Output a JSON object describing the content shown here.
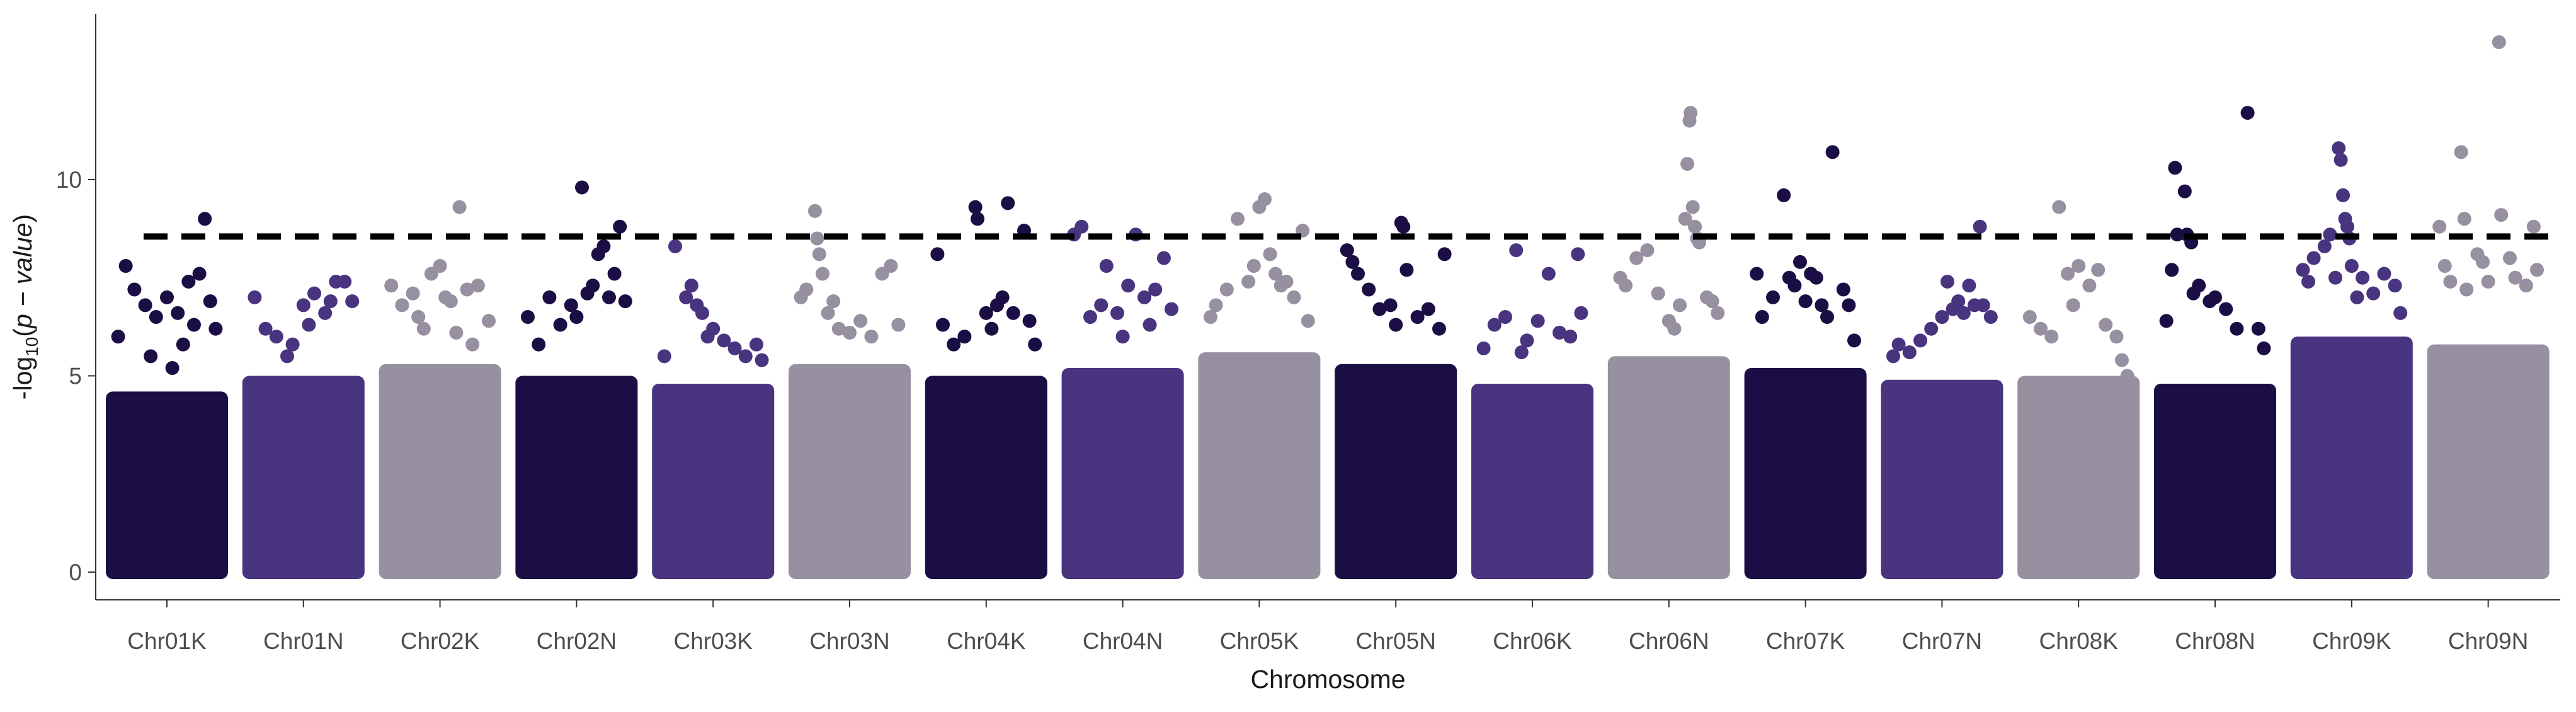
{
  "chart_data": {
    "type": "scatter",
    "subtype": "manhattan",
    "title": "",
    "xlabel": "Chromosome",
    "ylabel": {
      "prefix": "-log",
      "subscript": "10",
      "open": "(",
      "expression": "p − value",
      "close": ")"
    },
    "ylim": [
      0,
      14
    ],
    "y_ticks": [
      0,
      5,
      10
    ],
    "grid": false,
    "legend": "none",
    "threshold": {
      "value": 8.55,
      "style": "dashed",
      "color": "#000000"
    },
    "palette": [
      "#1b0e44",
      "#49347f",
      "#9690a0"
    ],
    "categories": [
      "Chr01K",
      "Chr01N",
      "Chr02K",
      "Chr02N",
      "Chr03K",
      "Chr03N",
      "Chr04K",
      "Chr04N",
      "Chr05K",
      "Chr05N",
      "Chr06K",
      "Chr06N",
      "Chr07K",
      "Chr07N",
      "Chr08K",
      "Chr08N",
      "Chr09K",
      "Chr09N"
    ],
    "series": [
      {
        "chromosome": "Chr01K",
        "color": "#1b0e44",
        "dense_top": 4.6,
        "points": [
          [
            0.05,
            6.0
          ],
          [
            0.12,
            7.8
          ],
          [
            0.2,
            7.2
          ],
          [
            0.3,
            6.8
          ],
          [
            0.4,
            6.5
          ],
          [
            0.5,
            7.0
          ],
          [
            0.6,
            6.6
          ],
          [
            0.7,
            7.4
          ],
          [
            0.8,
            7.6
          ],
          [
            0.85,
            9.0
          ],
          [
            0.9,
            6.9
          ],
          [
            0.95,
            6.2
          ],
          [
            0.35,
            5.5
          ],
          [
            0.55,
            5.2
          ],
          [
            0.75,
            6.3
          ],
          [
            0.65,
            5.8
          ]
        ]
      },
      {
        "chromosome": "Chr01N",
        "color": "#49347f",
        "dense_top": 5.0,
        "points": [
          [
            0.05,
            7.0
          ],
          [
            0.15,
            6.2
          ],
          [
            0.25,
            6.0
          ],
          [
            0.35,
            5.5
          ],
          [
            0.5,
            6.8
          ],
          [
            0.6,
            7.1
          ],
          [
            0.7,
            6.6
          ],
          [
            0.8,
            7.4
          ],
          [
            0.88,
            7.4
          ],
          [
            0.95,
            6.9
          ],
          [
            0.4,
            5.8
          ],
          [
            0.55,
            6.3
          ],
          [
            0.75,
            6.9
          ]
        ]
      },
      {
        "chromosome": "Chr02K",
        "color": "#9690a0",
        "dense_top": 5.3,
        "points": [
          [
            0.05,
            7.3
          ],
          [
            0.15,
            6.8
          ],
          [
            0.25,
            7.1
          ],
          [
            0.3,
            6.5
          ],
          [
            0.42,
            7.6
          ],
          [
            0.5,
            7.8
          ],
          [
            0.55,
            7.0
          ],
          [
            0.6,
            6.9
          ],
          [
            0.68,
            9.3
          ],
          [
            0.75,
            7.2
          ],
          [
            0.85,
            7.3
          ],
          [
            0.95,
            6.4
          ],
          [
            0.35,
            6.2
          ],
          [
            0.65,
            6.1
          ],
          [
            0.8,
            5.8
          ]
        ]
      },
      {
        "chromosome": "Chr02N",
        "color": "#1b0e44",
        "dense_top": 5.0,
        "points": [
          [
            0.05,
            6.5
          ],
          [
            0.15,
            5.8
          ],
          [
            0.25,
            7.0
          ],
          [
            0.35,
            6.3
          ],
          [
            0.45,
            6.8
          ],
          [
            0.55,
            9.8
          ],
          [
            0.6,
            7.1
          ],
          [
            0.7,
            8.1
          ],
          [
            0.75,
            8.3
          ],
          [
            0.85,
            7.6
          ],
          [
            0.9,
            8.8
          ],
          [
            0.95,
            6.9
          ],
          [
            0.5,
            6.5
          ],
          [
            0.65,
            7.3
          ],
          [
            0.8,
            7.0
          ]
        ]
      },
      {
        "chromosome": "Chr03K",
        "color": "#49347f",
        "dense_top": 4.8,
        "points": [
          [
            0.05,
            5.5
          ],
          [
            0.15,
            8.3
          ],
          [
            0.25,
            7.0
          ],
          [
            0.3,
            7.3
          ],
          [
            0.4,
            6.6
          ],
          [
            0.5,
            6.2
          ],
          [
            0.6,
            5.9
          ],
          [
            0.7,
            5.7
          ],
          [
            0.8,
            5.5
          ],
          [
            0.9,
            5.8
          ],
          [
            0.95,
            5.4
          ],
          [
            0.35,
            6.8
          ],
          [
            0.45,
            6.0
          ]
        ]
      },
      {
        "chromosome": "Chr03N",
        "color": "#9690a0",
        "dense_top": 5.3,
        "points": [
          [
            0.05,
            7.0
          ],
          [
            0.1,
            7.2
          ],
          [
            0.18,
            9.2
          ],
          [
            0.2,
            8.5
          ],
          [
            0.22,
            8.1
          ],
          [
            0.25,
            7.6
          ],
          [
            0.3,
            6.6
          ],
          [
            0.4,
            6.2
          ],
          [
            0.5,
            6.1
          ],
          [
            0.6,
            6.4
          ],
          [
            0.7,
            6.0
          ],
          [
            0.8,
            7.6
          ],
          [
            0.88,
            7.8
          ],
          [
            0.95,
            6.3
          ],
          [
            0.35,
            6.9
          ]
        ]
      },
      {
        "chromosome": "Chr04K",
        "color": "#1b0e44",
        "dense_top": 5.0,
        "points": [
          [
            0.05,
            8.1
          ],
          [
            0.1,
            6.3
          ],
          [
            0.2,
            5.8
          ],
          [
            0.3,
            6.0
          ],
          [
            0.4,
            9.3
          ],
          [
            0.42,
            9.0
          ],
          [
            0.55,
            6.2
          ],
          [
            0.6,
            6.8
          ],
          [
            0.7,
            9.4
          ],
          [
            0.75,
            6.6
          ],
          [
            0.85,
            8.7
          ],
          [
            0.9,
            6.4
          ],
          [
            0.95,
            5.8
          ],
          [
            0.5,
            6.6
          ],
          [
            0.65,
            7.0
          ]
        ]
      },
      {
        "chromosome": "Chr04N",
        "color": "#49347f",
        "dense_top": 5.2,
        "points": [
          [
            0.05,
            8.6
          ],
          [
            0.12,
            8.8
          ],
          [
            0.2,
            6.5
          ],
          [
            0.3,
            6.8
          ],
          [
            0.35,
            7.8
          ],
          [
            0.45,
            6.6
          ],
          [
            0.55,
            7.3
          ],
          [
            0.62,
            8.6
          ],
          [
            0.7,
            7.0
          ],
          [
            0.8,
            7.2
          ],
          [
            0.88,
            8.0
          ],
          [
            0.95,
            6.7
          ],
          [
            0.5,
            6.0
          ],
          [
            0.75,
            6.3
          ]
        ]
      },
      {
        "chromosome": "Chr05K",
        "color": "#9690a0",
        "dense_top": 5.6,
        "points": [
          [
            0.05,
            6.5
          ],
          [
            0.1,
            6.8
          ],
          [
            0.2,
            7.2
          ],
          [
            0.3,
            9.0
          ],
          [
            0.4,
            7.4
          ],
          [
            0.5,
            9.3
          ],
          [
            0.55,
            9.5
          ],
          [
            0.6,
            8.1
          ],
          [
            0.65,
            7.6
          ],
          [
            0.75,
            7.4
          ],
          [
            0.82,
            7.0
          ],
          [
            0.9,
            8.7
          ],
          [
            0.95,
            6.4
          ],
          [
            0.45,
            7.8
          ],
          [
            0.7,
            7.3
          ]
        ]
      },
      {
        "chromosome": "Chr05N",
        "color": "#1b0e44",
        "dense_top": 5.3,
        "points": [
          [
            0.05,
            8.2
          ],
          [
            0.1,
            7.9
          ],
          [
            0.15,
            7.6
          ],
          [
            0.25,
            7.2
          ],
          [
            0.35,
            6.7
          ],
          [
            0.45,
            6.8
          ],
          [
            0.55,
            8.9
          ],
          [
            0.57,
            8.8
          ],
          [
            0.6,
            7.7
          ],
          [
            0.7,
            6.5
          ],
          [
            0.8,
            6.7
          ],
          [
            0.9,
            6.2
          ],
          [
            0.95,
            8.1
          ],
          [
            0.5,
            6.3
          ]
        ]
      },
      {
        "chromosome": "Chr06K",
        "color": "#49347f",
        "dense_top": 4.8,
        "points": [
          [
            0.05,
            5.7
          ],
          [
            0.15,
            6.3
          ],
          [
            0.25,
            6.5
          ],
          [
            0.35,
            8.2
          ],
          [
            0.45,
            5.9
          ],
          [
            0.55,
            6.4
          ],
          [
            0.65,
            7.6
          ],
          [
            0.75,
            6.1
          ],
          [
            0.85,
            6.0
          ],
          [
            0.92,
            8.1
          ],
          [
            0.95,
            6.6
          ],
          [
            0.4,
            5.6
          ]
        ]
      },
      {
        "chromosome": "Chr06N",
        "color": "#9690a0",
        "dense_top": 5.5,
        "points": [
          [
            0.05,
            7.5
          ],
          [
            0.1,
            7.3
          ],
          [
            0.2,
            8.0
          ],
          [
            0.3,
            8.2
          ],
          [
            0.4,
            7.1
          ],
          [
            0.5,
            6.4
          ],
          [
            0.65,
            9.0
          ],
          [
            0.67,
            10.4
          ],
          [
            0.69,
            11.5
          ],
          [
            0.7,
            11.7
          ],
          [
            0.72,
            9.3
          ],
          [
            0.74,
            8.8
          ],
          [
            0.76,
            8.5
          ],
          [
            0.78,
            8.4
          ],
          [
            0.6,
            6.8
          ],
          [
            0.85,
            7.0
          ],
          [
            0.95,
            6.6
          ],
          [
            0.55,
            6.2
          ],
          [
            0.9,
            6.9
          ]
        ]
      },
      {
        "chromosome": "Chr07K",
        "color": "#1b0e44",
        "dense_top": 5.2,
        "points": [
          [
            0.05,
            7.6
          ],
          [
            0.1,
            6.5
          ],
          [
            0.2,
            7.0
          ],
          [
            0.3,
            9.6
          ],
          [
            0.4,
            7.3
          ],
          [
            0.45,
            7.9
          ],
          [
            0.55,
            7.6
          ],
          [
            0.6,
            7.5
          ],
          [
            0.65,
            6.8
          ],
          [
            0.7,
            6.5
          ],
          [
            0.75,
            10.7
          ],
          [
            0.85,
            7.2
          ],
          [
            0.9,
            6.8
          ],
          [
            0.95,
            5.9
          ],
          [
            0.5,
            6.9
          ],
          [
            0.35,
            7.5
          ]
        ]
      },
      {
        "chromosome": "Chr07N",
        "color": "#49347f",
        "dense_top": 4.9,
        "points": [
          [
            0.05,
            5.5
          ],
          [
            0.1,
            5.8
          ],
          [
            0.2,
            5.6
          ],
          [
            0.3,
            5.9
          ],
          [
            0.4,
            6.2
          ],
          [
            0.5,
            6.5
          ],
          [
            0.55,
            7.4
          ],
          [
            0.6,
            6.7
          ],
          [
            0.7,
            6.6
          ],
          [
            0.75,
            7.3
          ],
          [
            0.8,
            6.8
          ],
          [
            0.85,
            8.8
          ],
          [
            0.88,
            6.8
          ],
          [
            0.95,
            6.5
          ],
          [
            0.65,
            6.9
          ]
        ]
      },
      {
        "chromosome": "Chr08K",
        "color": "#9690a0",
        "dense_top": 5.0,
        "points": [
          [
            0.05,
            6.5
          ],
          [
            0.15,
            6.2
          ],
          [
            0.25,
            6.0
          ],
          [
            0.32,
            9.3
          ],
          [
            0.4,
            7.6
          ],
          [
            0.5,
            7.8
          ],
          [
            0.6,
            7.3
          ],
          [
            0.68,
            7.7
          ],
          [
            0.75,
            6.3
          ],
          [
            0.85,
            6.0
          ],
          [
            0.9,
            5.4
          ],
          [
            0.95,
            5.0
          ],
          [
            0.45,
            6.8
          ]
        ]
      },
      {
        "chromosome": "Chr08N",
        "color": "#1b0e44",
        "dense_top": 4.8,
        "points": [
          [
            0.05,
            6.4
          ],
          [
            0.1,
            7.7
          ],
          [
            0.13,
            10.3
          ],
          [
            0.15,
            8.6
          ],
          [
            0.22,
            9.7
          ],
          [
            0.24,
            8.6
          ],
          [
            0.28,
            8.4
          ],
          [
            0.35,
            7.3
          ],
          [
            0.45,
            6.9
          ],
          [
            0.5,
            7.0
          ],
          [
            0.6,
            6.7
          ],
          [
            0.7,
            6.2
          ],
          [
            0.8,
            11.7
          ],
          [
            0.9,
            6.2
          ],
          [
            0.95,
            5.7
          ],
          [
            0.3,
            7.1
          ]
        ]
      },
      {
        "chromosome": "Chr09K",
        "color": "#49347f",
        "dense_top": 6.0,
        "points": [
          [
            0.05,
            7.7
          ],
          [
            0.1,
            7.4
          ],
          [
            0.15,
            8.0
          ],
          [
            0.25,
            8.3
          ],
          [
            0.3,
            8.6
          ],
          [
            0.35,
            7.5
          ],
          [
            0.38,
            10.8
          ],
          [
            0.4,
            10.5
          ],
          [
            0.42,
            9.6
          ],
          [
            0.44,
            9.0
          ],
          [
            0.46,
            8.8
          ],
          [
            0.48,
            8.5
          ],
          [
            0.5,
            7.8
          ],
          [
            0.6,
            7.5
          ],
          [
            0.7,
            7.1
          ],
          [
            0.8,
            7.6
          ],
          [
            0.9,
            7.3
          ],
          [
            0.95,
            6.6
          ],
          [
            0.55,
            7.0
          ]
        ]
      },
      {
        "chromosome": "Chr09N",
        "color": "#9690a0",
        "dense_top": 5.8,
        "points": [
          [
            0.05,
            8.8
          ],
          [
            0.1,
            7.8
          ],
          [
            0.15,
            7.4
          ],
          [
            0.25,
            10.7
          ],
          [
            0.28,
            9.0
          ],
          [
            0.3,
            7.2
          ],
          [
            0.4,
            8.1
          ],
          [
            0.5,
            7.4
          ],
          [
            0.6,
            13.5
          ],
          [
            0.62,
            9.1
          ],
          [
            0.7,
            8.0
          ],
          [
            0.75,
            7.5
          ],
          [
            0.85,
            7.3
          ],
          [
            0.92,
            8.8
          ],
          [
            0.95,
            7.7
          ],
          [
            0.45,
            7.9
          ]
        ]
      }
    ]
  }
}
